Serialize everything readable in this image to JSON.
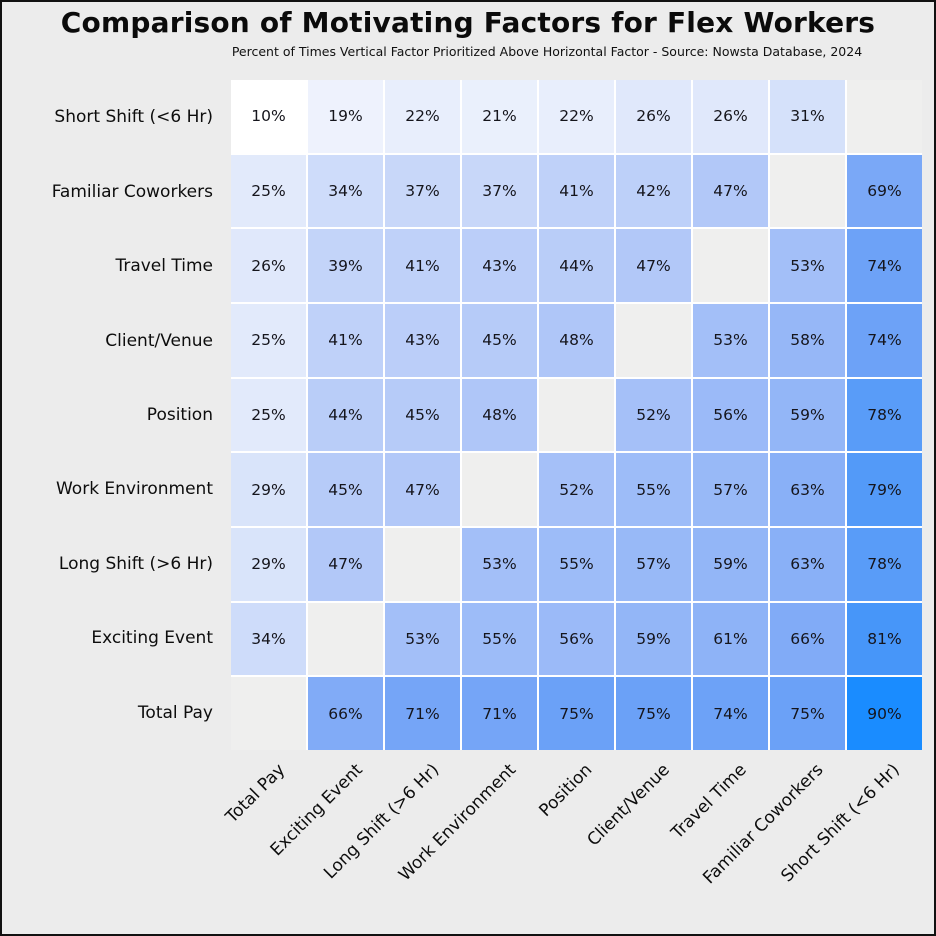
{
  "chart_data": {
    "type": "heatmap",
    "title": "Comparison of Motivating Factors for Flex Workers",
    "subtitle": "Percent of Times Vertical Factor Prioritized Above Horizontal Factor - Source: Nowsta Database, 2024",
    "unit": "%",
    "value_suffix": "%",
    "rows": [
      "Short Shift (<6 Hr)",
      "Familiar Coworkers",
      "Travel Time",
      "Client/Venue",
      "Position",
      "Work Environment",
      "Long Shift (>6 Hr)",
      "Exciting Event",
      "Total Pay"
    ],
    "columns": [
      "Total Pay",
      "Exciting Event",
      "Long Shift (>6 Hr)",
      "Work Environment",
      "Position",
      "Client/Venue",
      "Travel Time",
      "Familiar Coworkers",
      "Short Shift (<6 Hr)"
    ],
    "values": [
      [
        10,
        19,
        22,
        21,
        22,
        26,
        26,
        31,
        null
      ],
      [
        25,
        34,
        37,
        37,
        41,
        42,
        47,
        null,
        69
      ],
      [
        26,
        39,
        41,
        43,
        44,
        47,
        null,
        53,
        74
      ],
      [
        25,
        41,
        43,
        45,
        48,
        null,
        53,
        58,
        74
      ],
      [
        25,
        44,
        45,
        48,
        null,
        52,
        56,
        59,
        78
      ],
      [
        29,
        45,
        47,
        null,
        52,
        55,
        57,
        63,
        79
      ],
      [
        29,
        47,
        null,
        53,
        55,
        57,
        59,
        63,
        78
      ],
      [
        34,
        null,
        53,
        55,
        56,
        59,
        61,
        66,
        81
      ],
      [
        null,
        66,
        71,
        71,
        75,
        75,
        74,
        75,
        90
      ]
    ],
    "colors": {
      "background": "#ECECEC",
      "empty_cell": "#EFEFEE",
      "gridline": "#FFFFFF",
      "cell_text": "#15151C",
      "color_stops": [
        [
          10,
          "#FFFFFF"
        ],
        [
          25,
          "#E2EAFB"
        ],
        [
          47,
          "#B2C8F8"
        ],
        [
          66,
          "#81ABF7"
        ],
        [
          75,
          "#6BA1F7"
        ],
        [
          81,
          "#4796F9"
        ],
        [
          90,
          "#1A8CFF"
        ]
      ]
    },
    "legend": "none",
    "grid": true,
    "value_range": [
      10,
      90
    ]
  }
}
